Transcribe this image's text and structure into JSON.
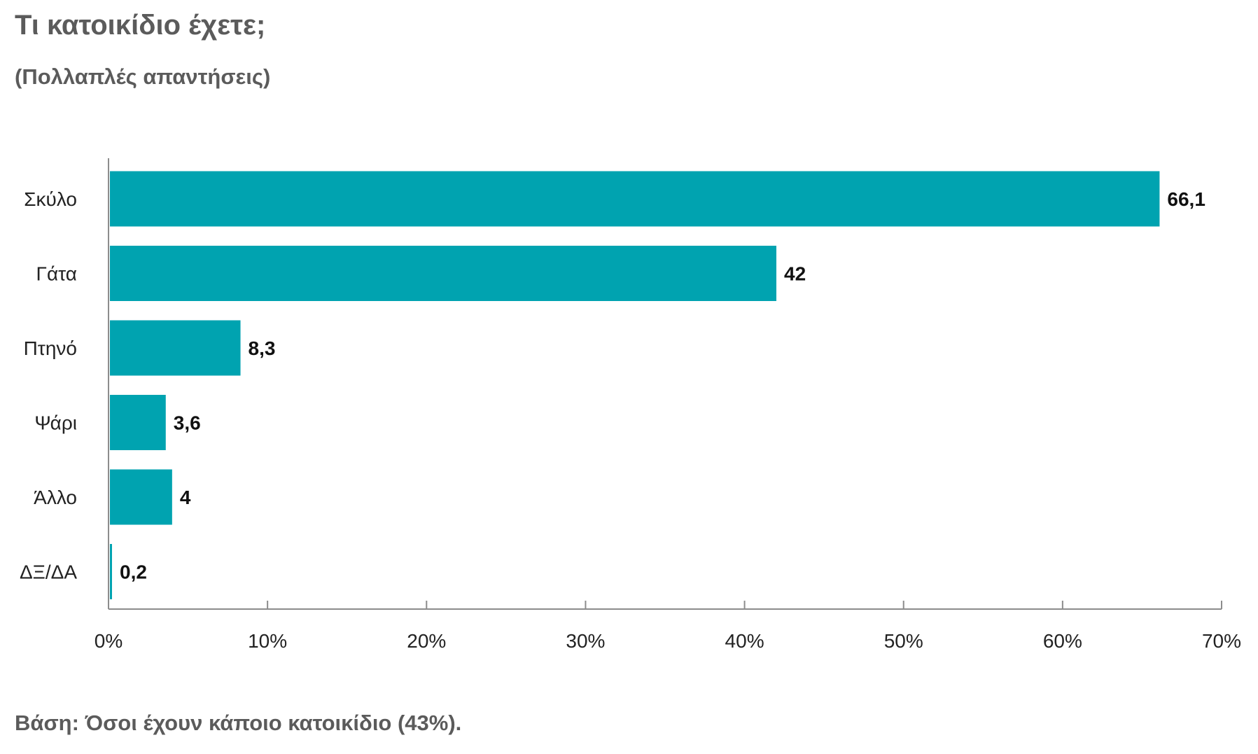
{
  "title": "Τι κατοικίδιο έχετε;",
  "subtitle": "(Πολλαπλές απαντήσεις)",
  "footnote": "Βάση: Όσοι έχουν κάποιο κατοικίδιο (43%).",
  "colors": {
    "bar": "#00a3b0",
    "axis": "#8c8c8c",
    "text": "#5b5b5b"
  },
  "chart_data": {
    "type": "bar",
    "orientation": "horizontal",
    "categories": [
      "Σκύλο",
      "Γάτα",
      "Πτηνό",
      "Ψάρι",
      "Άλλο",
      "ΔΞ/ΔΑ"
    ],
    "values": [
      66.1,
      42,
      8.3,
      3.6,
      4,
      0.2
    ],
    "value_labels": [
      "66,1",
      "42",
      "8,3",
      "3,6",
      "4",
      "0,2"
    ],
    "xlim": [
      0,
      70
    ],
    "x_ticks": [
      0,
      10,
      20,
      30,
      40,
      50,
      60,
      70
    ],
    "x_tick_labels": [
      "0%",
      "10%",
      "20%",
      "30%",
      "40%",
      "50%",
      "60%",
      "70%"
    ],
    "grid": false,
    "legend": "none"
  }
}
